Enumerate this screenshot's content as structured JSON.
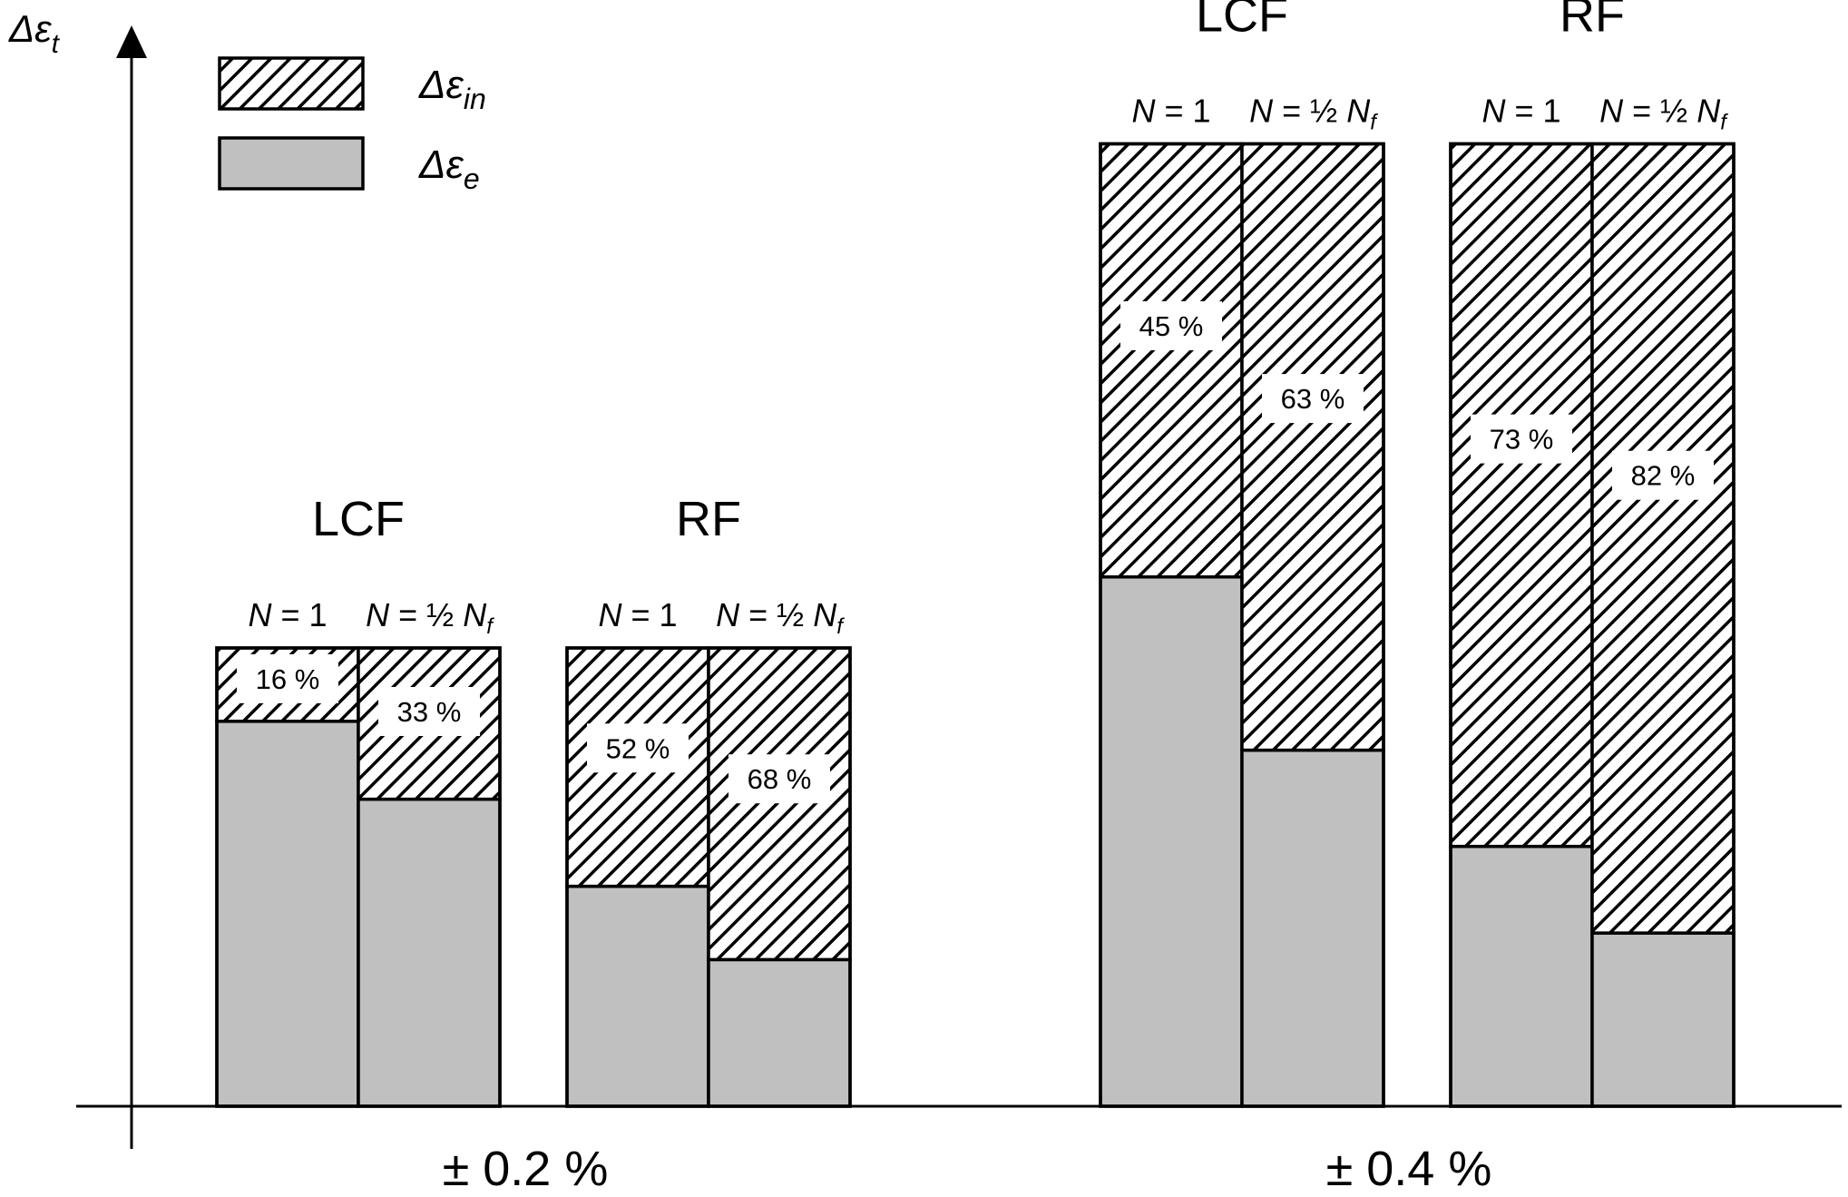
{
  "chart_data": {
    "type": "bar",
    "title": "",
    "ylabel": {
      "base": "Δε",
      "sub": "t"
    },
    "legend": [
      {
        "key": "inelastic",
        "base": "Δε",
        "sub": "in",
        "pattern": "hatched"
      },
      {
        "key": "elastic",
        "base": "Δε",
        "sub": "e",
        "pattern": "gray"
      }
    ],
    "legend_position": "top-left",
    "colors": {
      "elastic": "#c0c0c0",
      "stroke": "#000000",
      "background": "#ffffff"
    },
    "total_relative": {
      "±0.2%": 1.0,
      "±0.4%": 2.1
    },
    "groups": [
      {
        "amplitude": "± 0.2 %",
        "total": 1.0,
        "tests": [
          {
            "name": "LCF",
            "bars": [
              {
                "n_base": "N",
                "n_rest": " = 1",
                "n_sub": "",
                "inelastic_pct": 16,
                "label": "16 %"
              },
              {
                "n_base": "N",
                "n_rest": " = ½ ",
                "n_tail": "N",
                "n_sub": "f",
                "inelastic_pct": 33,
                "label": "33 %"
              }
            ]
          },
          {
            "name": "RF",
            "bars": [
              {
                "n_base": "N",
                "n_rest": " = 1",
                "n_sub": "",
                "inelastic_pct": 52,
                "label": "52 %"
              },
              {
                "n_base": "N",
                "n_rest": " = ½ ",
                "n_tail": "N",
                "n_sub": "f",
                "inelastic_pct": 68,
                "label": "68 %"
              }
            ]
          }
        ]
      },
      {
        "amplitude": "± 0.4 %",
        "total": 2.1,
        "tests": [
          {
            "name": "LCF",
            "bars": [
              {
                "n_base": "N",
                "n_rest": " = 1",
                "n_sub": "",
                "inelastic_pct": 45,
                "label": "45 %"
              },
              {
                "n_base": "N",
                "n_rest": " = ½ ",
                "n_tail": "N",
                "n_sub": "f",
                "inelastic_pct": 63,
                "label": "63 %"
              }
            ]
          },
          {
            "name": "RF",
            "bars": [
              {
                "n_base": "N",
                "n_rest": " = 1",
                "n_sub": "",
                "inelastic_pct": 73,
                "label": "73 %"
              },
              {
                "n_base": "N",
                "n_rest": " = ½ ",
                "n_tail": "N",
                "n_sub": "f",
                "inelastic_pct": 82,
                "label": "82 %"
              }
            ]
          }
        ]
      }
    ]
  }
}
